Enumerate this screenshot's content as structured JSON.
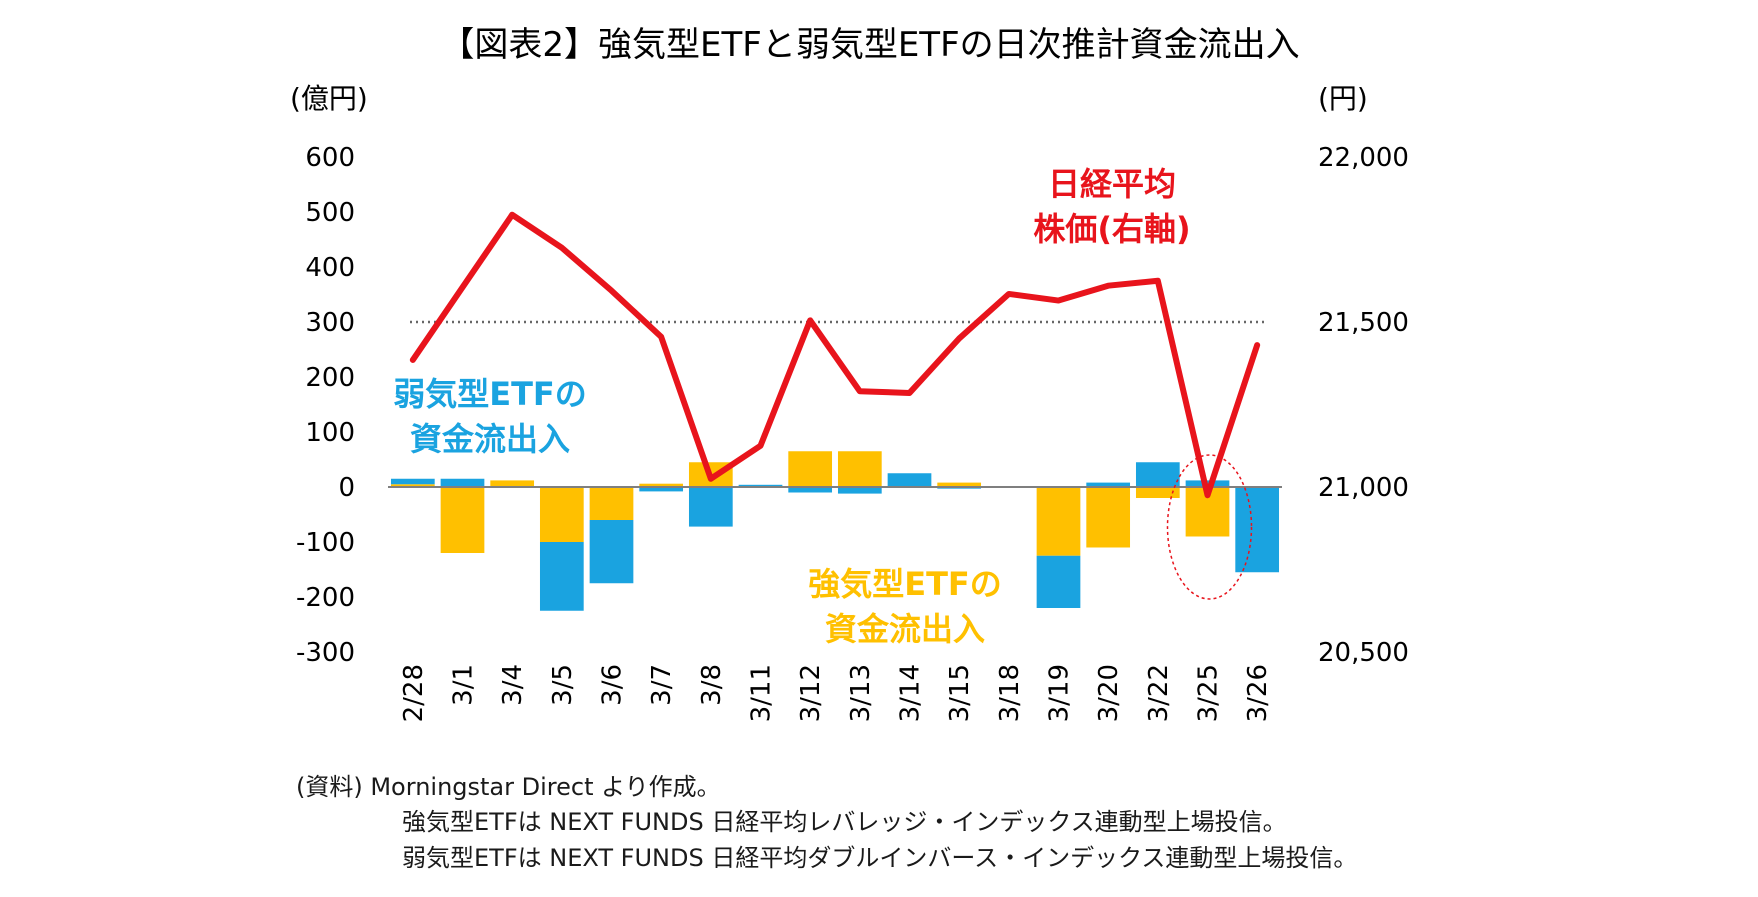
{
  "chart_data": {
    "type": "bar+line",
    "title": "【図表2】強気型ETFと弱気型ETFの日次推計資金流出入",
    "y_left_unit": "(億円)",
    "y_right_unit": "(円)",
    "y_left_range": [
      -300,
      600
    ],
    "y_right_range": [
      20500,
      22000
    ],
    "y_left_ticks": [
      "600",
      "500",
      "400",
      "300",
      "200",
      "100",
      "0",
      "-100",
      "-200",
      "-300"
    ],
    "y_right_ticks": [
      "22,000",
      "21,500",
      "21,000",
      "20,500"
    ],
    "categories": [
      "2/28",
      "3/1",
      "3/4",
      "3/5",
      "3/6",
      "3/7",
      "3/8",
      "3/11",
      "3/12",
      "3/13",
      "3/14",
      "3/15",
      "3/18",
      "3/19",
      "3/20",
      "3/22",
      "3/25",
      "3/26"
    ],
    "stacked": true,
    "reference_line": {
      "axis": "left",
      "value": 300,
      "style": "dotted"
    },
    "series": [
      {
        "axis": "left",
        "color": "#FFC000",
        "values": [
          5,
          -120,
          12,
          -100,
          -60,
          6,
          45,
          0,
          65,
          65,
          0,
          8,
          0,
          -125,
          -110,
          -20,
          -90,
          0
        ]
      },
      {
        "axis": "left",
        "color": "#1AA3E0",
        "values": [
          10,
          15,
          0,
          -125,
          -115,
          -8,
          -72,
          4,
          -10,
          -12,
          25,
          -3,
          0,
          -95,
          8,
          45,
          12,
          -155
        ]
      },
      {
        "axis": "right",
        "type": "line",
        "color": "#E8141C",
        "values": [
          21385,
          21605,
          21825,
          21725,
          21595,
          21455,
          21025,
          21125,
          21505,
          21290,
          21285,
          21450,
          21585,
          21565,
          21610,
          21625,
          20975,
          21430
        ]
      }
    ],
    "annotations": {
      "bear_label": [
        "弱気型ETFの",
        "資金流出入"
      ],
      "bull_label": [
        "強気型ETFの",
        "資金流出入"
      ],
      "nikkei_label": [
        "日経平均",
        "株価(右軸)"
      ]
    },
    "colors": {
      "bull": "#FFC000",
      "bear": "#1AA3E0",
      "nikkei": "#E8141C",
      "highlight_circle": "#E8141C"
    }
  },
  "notes": [
    "(資料) Morningstar Direct より作成。",
    "強気型ETFは NEXT FUNDS 日経平均レバレッジ・インデックス連動型上場投信。",
    "弱気型ETFは NEXT FUNDS 日経平均ダブルインバース・インデックス連動型上場投信。"
  ]
}
